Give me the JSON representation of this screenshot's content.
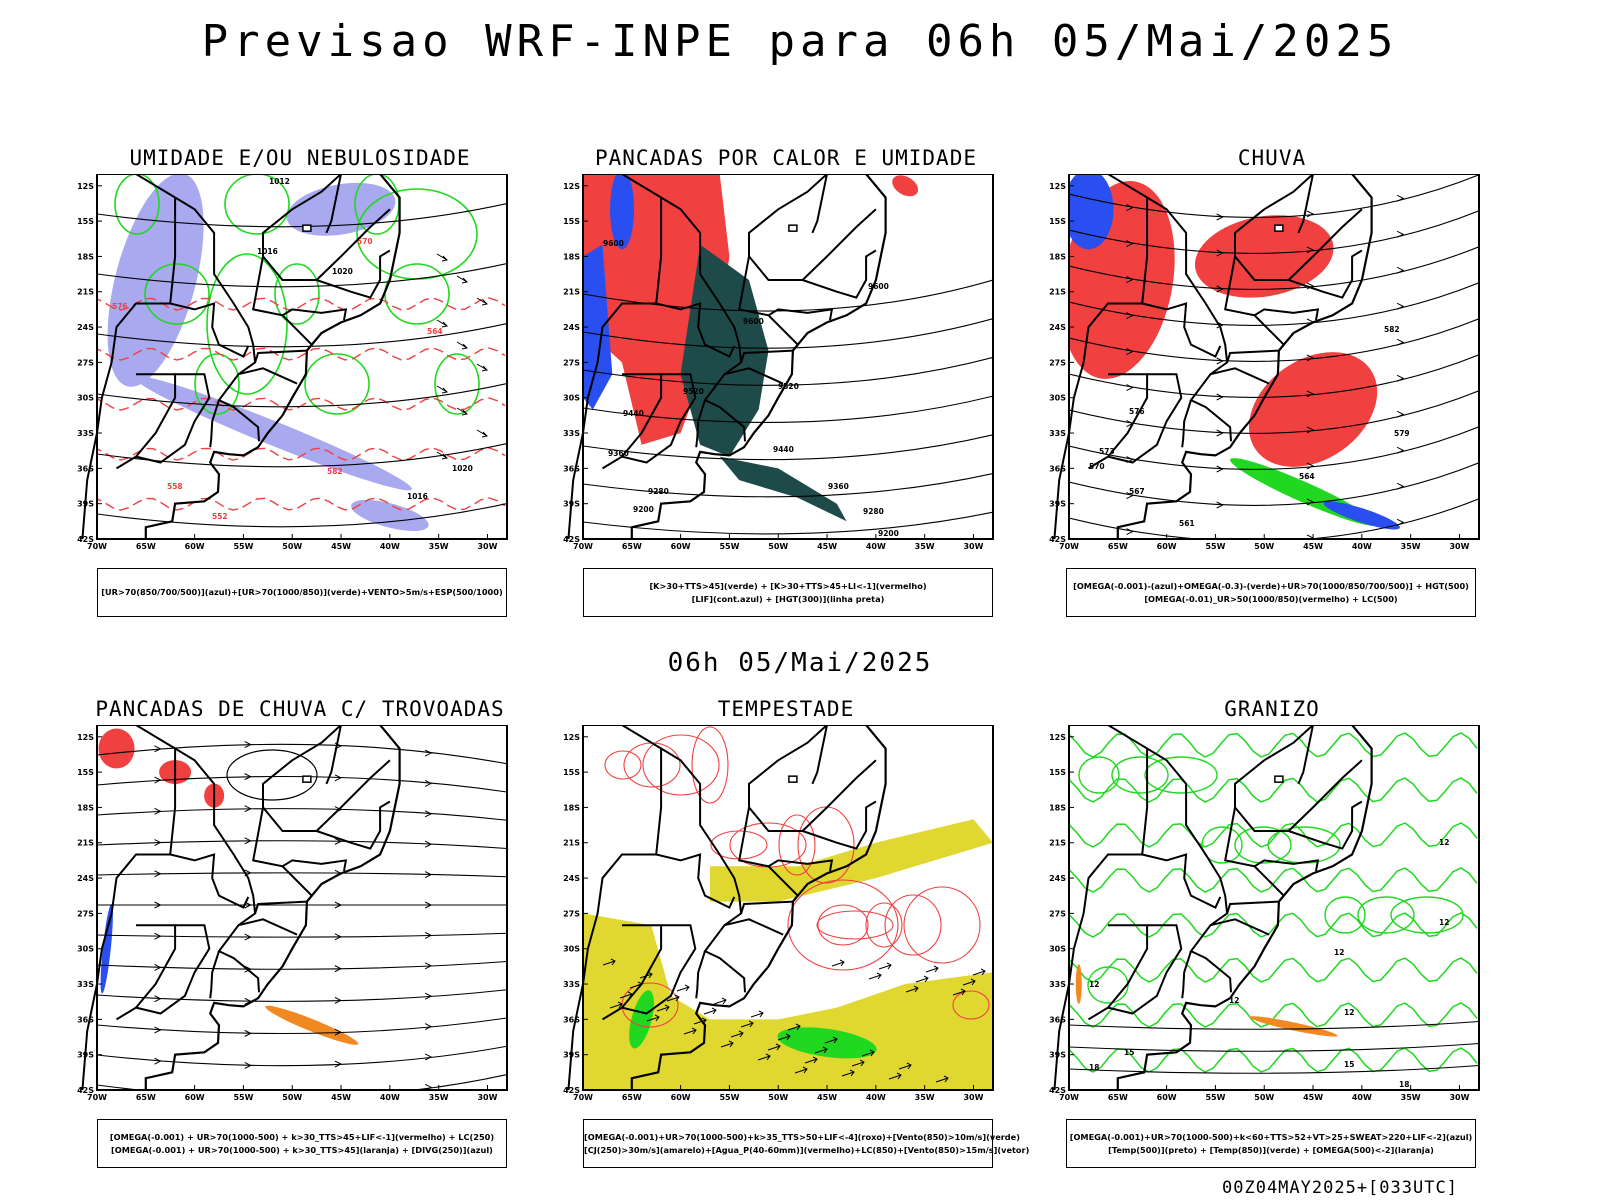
{
  "header": {
    "title": "Previsao WRF-INPE  para 06h 05/Mai/2025",
    "subtitle": "06h 05/Mai/2025",
    "footer": "00Z04MAY2025+[033UTC]"
  },
  "axes": {
    "lat_labels": [
      "12S",
      "15S",
      "18S",
      "21S",
      "24S",
      "27S",
      "30S",
      "33S",
      "36S",
      "39S",
      "42S"
    ],
    "lon_labels": [
      "70W",
      "65W",
      "60W",
      "55W",
      "50W",
      "45W",
      "40W",
      "35W",
      "30W"
    ]
  },
  "colors": {
    "humid_blue": "#a9a9f0",
    "green": "#1fd81f",
    "red": "#f04040",
    "dark_teal": "#1e4a4a",
    "blue": "#2a4ff0",
    "orange": "#f08a20",
    "yellow": "#e0d830",
    "black": "#000000"
  },
  "panels": [
    {
      "title": "UMIDADE E/OU NEBULOSIDADE",
      "legend": [
        "[UR>70(850/700/500)](azul)+[UR>70(1000/850)](verde)+VENTO>5m/s+ESP(500/1000)"
      ],
      "contour_labels": [
        "1012",
        "1016",
        "1020",
        "564",
        "570",
        "576",
        "582",
        "558",
        "552",
        "546"
      ]
    },
    {
      "title": "PANCADAS POR CALOR E UMIDADE",
      "legend": [
        "[K>30+TTS>45](verde)  +  [K>30+TTS>45+LI<-1](vermelho)",
        "[LIF](cont.azul)  +  [HGT(300)](linha preta)"
      ],
      "contour_labels": [
        "9600",
        "9520",
        "9440",
        "9360",
        "9280",
        "9200"
      ]
    },
    {
      "title": "CHUVA",
      "legend": [
        "[OMEGA(-0.001)-(azul)+OMEGA(-0.3)-(verde)+UR>70(1000/850/700/500)]  +  HGT(500)",
        "[OMEGA(-0.01)_UR>50(1000/850)(vermelho)  +  LC(500)"
      ],
      "contour_labels": [
        "582",
        "579",
        "576",
        "573",
        "570",
        "567",
        "564",
        "561"
      ]
    },
    {
      "title": "PANCADAS DE CHUVA C/ TROVOADAS",
      "legend": [
        "[OMEGA(-0.001)  +  UR>70(1000-500)  +  k>30_TTS>45+LIF<-1](vermelho)  +  LC(250)",
        "[OMEGA(-0.001)  +  UR>70(1000-500)  +  k>30_TTS>45](laranja)  +  [DIVG(250)](azul)"
      ]
    },
    {
      "title": "TEMPESTADE",
      "legend": [
        "[OMEGA(-0.001)+UR>70(1000-500)+k>35_TTS>50+LIF<-4](roxo)+[Vento(850)>10m/s](verde)",
        "[CJ(250)>30m/s](amarelo)+[Agua_P(40-60mm)](vermelho)+LC(850)+[Vento(850)>15m/s](vetor)"
      ]
    },
    {
      "title": "GRANIZO",
      "legend": [
        "[OMEGA(-0.001)+UR>70(1000-500)+k<60+TTS>52+VT>25+SWEAT>220+LIF<-2](azul)",
        "[Temp(500)](preto)  +  [Temp(850)](verde)  +  [OMEGA(500)<-2](laranja)"
      ],
      "contour_labels": [
        "12",
        "15",
        "18"
      ]
    }
  ]
}
